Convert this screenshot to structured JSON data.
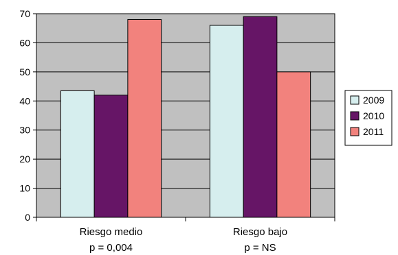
{
  "chart_data": {
    "type": "bar",
    "categories": [
      "Riesgo medio",
      "Riesgo bajo"
    ],
    "category_sublabels": [
      "p = 0,004",
      "p = NS"
    ],
    "series": [
      {
        "name": "2009",
        "values": [
          43.5,
          66
        ],
        "color": "#d6eeee"
      },
      {
        "name": "2010",
        "values": [
          42,
          69
        ],
        "color": "#661566"
      },
      {
        "name": "2011",
        "values": [
          68,
          50
        ],
        "color": "#f2827d"
      }
    ],
    "ylim": [
      0,
      70
    ],
    "yticks": [
      0,
      10,
      20,
      30,
      40,
      50,
      60,
      70
    ],
    "grid": true,
    "legend": "right",
    "plot_background": "#c0c0c0"
  }
}
